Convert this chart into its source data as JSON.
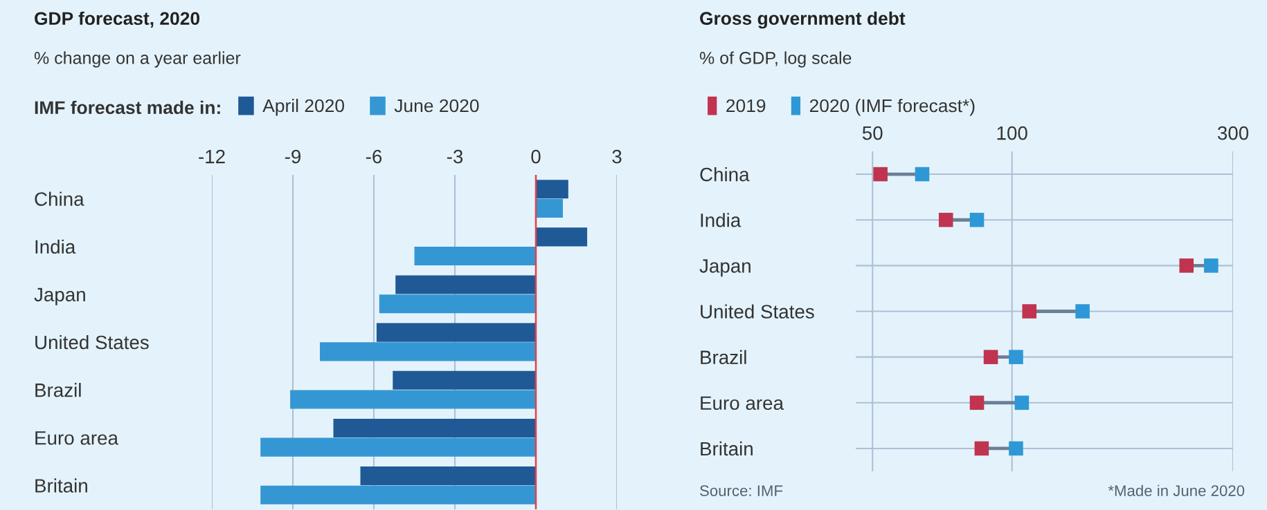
{
  "chart_data": [
    {
      "type": "bar",
      "orientation": "horizontal",
      "title": "GDP forecast, 2020",
      "subtitle": "% change on a year earlier",
      "legend_title": "IMF forecast made in:",
      "legend": "top left",
      "categories": [
        "China",
        "India",
        "Japan",
        "United States",
        "Brazil",
        "Euro area",
        "Britain"
      ],
      "series": [
        {
          "name": "April 2020",
          "color": "#1f5a96",
          "values": [
            1.2,
            1.9,
            -5.2,
            -5.9,
            -5.3,
            -7.5,
            -6.5
          ]
        },
        {
          "name": "June 2020",
          "color": "#3497d4",
          "values": [
            1.0,
            -4.5,
            -5.8,
            -8.0,
            -9.1,
            -10.2,
            -10.2
          ]
        }
      ],
      "xlim": [
        -12,
        3
      ],
      "xticks": [
        -12,
        -9,
        -6,
        -3,
        0,
        3
      ],
      "grid": "x",
      "ref_lines": [
        {
          "axis": "x",
          "value": 0,
          "label": null,
          "color": "#e3404a"
        }
      ]
    },
    {
      "type": "scatter",
      "orientation": "horizontal",
      "title": "Gross government debt",
      "subtitle": "% of GDP, log scale",
      "legend": "top left",
      "log": "x",
      "marker": "square",
      "categories": [
        "China",
        "India",
        "Japan",
        "United States",
        "Brazil",
        "Euro area",
        "Britain"
      ],
      "series": [
        {
          "name": "2019",
          "color": "#c0344f",
          "values": [
            52,
            72,
            238,
            109,
            90,
            84,
            86
          ]
        },
        {
          "name": "2020 (IMF forecast*)",
          "color": "#2e98d6",
          "values": [
            64,
            84,
            269,
            142,
            102,
            105,
            102
          ]
        }
      ],
      "xlim": [
        46,
        300
      ],
      "xticks": [
        50,
        100,
        300
      ],
      "grid": true,
      "annotations": [
        "Source: IMF",
        "*Made in June 2020"
      ]
    }
  ]
}
